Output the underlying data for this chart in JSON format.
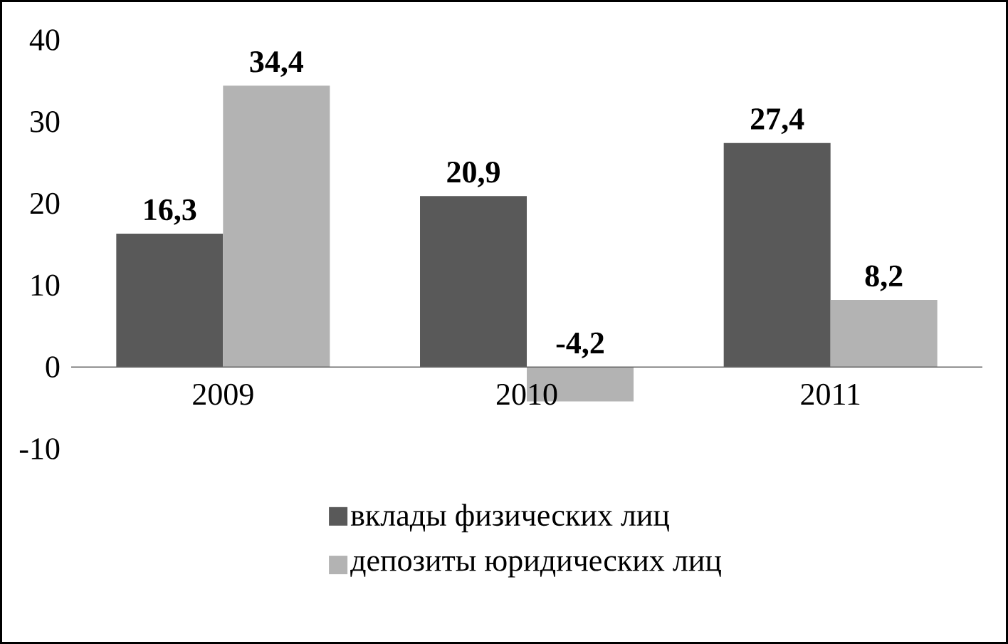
{
  "chart_data": {
    "type": "bar",
    "categories": [
      "2009",
      "2010",
      "2011"
    ],
    "series": [
      {
        "name": "вклады физических лиц",
        "color": "#595959",
        "values": [
          16.3,
          20.9,
          27.4
        ],
        "value_labels": [
          "16,3",
          "20,9",
          "27,4"
        ]
      },
      {
        "name": "депозиты юридических лиц",
        "color": "#b3b3b3",
        "values": [
          34.4,
          -4.2,
          8.2
        ],
        "value_labels": [
          "34,4",
          "-4,2",
          "8,2"
        ]
      }
    ],
    "ylim": [
      -10,
      40
    ],
    "yticks": [
      -10,
      0,
      10,
      20,
      30,
      40
    ],
    "grid": false,
    "legend": "bottom"
  }
}
